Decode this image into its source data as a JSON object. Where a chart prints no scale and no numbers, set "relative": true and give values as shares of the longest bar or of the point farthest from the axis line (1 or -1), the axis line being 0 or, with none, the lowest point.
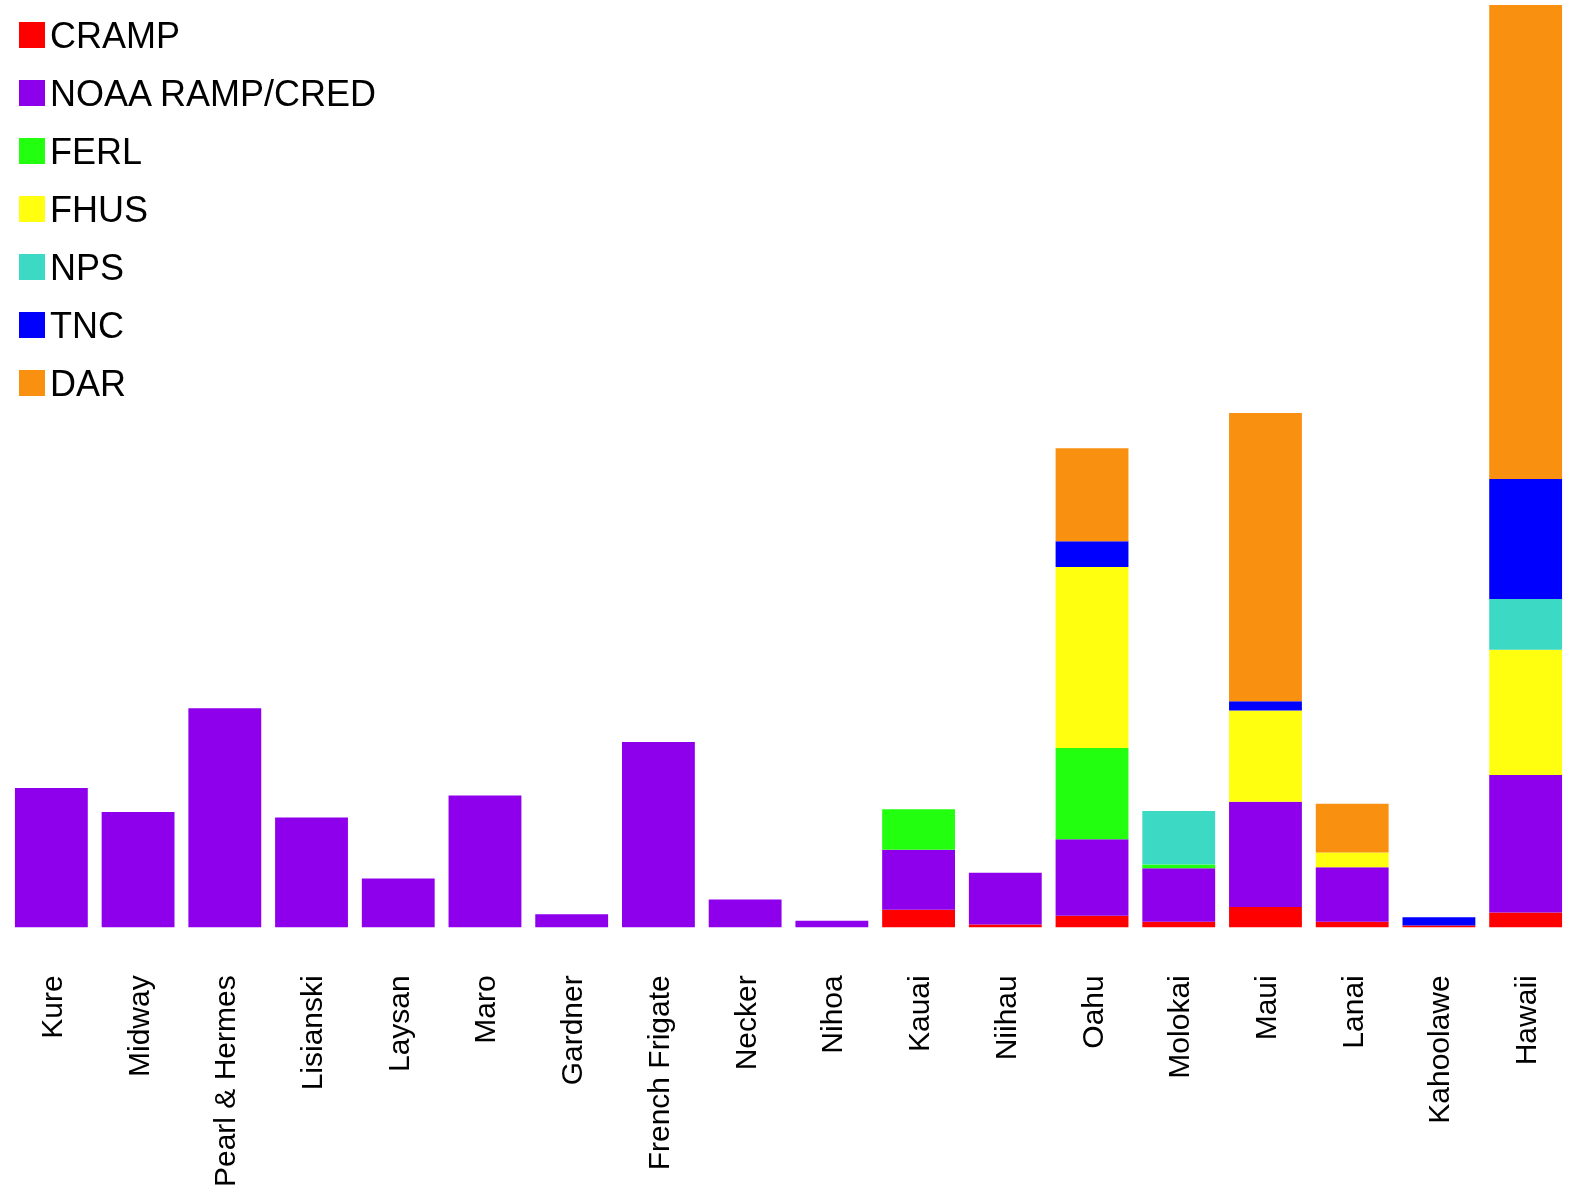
{
  "chart_data": {
    "type": "bar",
    "stacked": true,
    "relative": true,
    "legend": "top left",
    "categories": [
      "Kure",
      "Midway",
      "Pearl & Hermes",
      "Lisianski",
      "Laysan",
      "Maro",
      "Gardner",
      "French Frigate",
      "Necker",
      "Nihoa",
      "Kauai",
      "Niihau",
      "Oahu",
      "Molokai",
      "Maui",
      "Lanai",
      "Kahoolawe",
      "Hawaii"
    ],
    "series": [
      {
        "name": "CRAMP",
        "color": "#ff0000",
        "values": [
          0,
          0,
          0,
          0,
          0,
          0,
          0,
          0,
          0,
          0,
          0.019,
          0.003,
          0.0125,
          0.006,
          0.022,
          0.006,
          0.002,
          0.016
        ]
      },
      {
        "name": "NOAA RAMP/CRED",
        "color": "#8e00ec",
        "values": [
          0.151,
          0.125,
          0.2375,
          0.119,
          0.053,
          0.143,
          0.014,
          0.201,
          0.03,
          0.007,
          0.065,
          0.056,
          0.083,
          0.058,
          0.114,
          0.059,
          0,
          0.149
        ]
      },
      {
        "name": "FERL",
        "color": "#22ff0f",
        "values": [
          0,
          0,
          0,
          0,
          0,
          0,
          0,
          0,
          0,
          0,
          0.044,
          0,
          0.099,
          0.004,
          0,
          0,
          0,
          0
        ]
      },
      {
        "name": "FHUS",
        "color": "#ffff0f",
        "values": [
          0,
          0,
          0,
          0,
          0,
          0,
          0,
          0,
          0,
          0,
          0,
          0,
          0.196,
          0,
          0.099,
          0.016,
          0,
          0.136
        ]
      },
      {
        "name": "NPS",
        "color": "#3cd9c4",
        "values": [
          0,
          0,
          0,
          0,
          0,
          0,
          0,
          0,
          0,
          0,
          0,
          0,
          0,
          0.058,
          0,
          0,
          0,
          0.055
        ]
      },
      {
        "name": "TNC",
        "color": "#0000ff",
        "values": [
          0,
          0,
          0,
          0,
          0,
          0,
          0,
          0,
          0,
          0,
          0,
          0,
          0.028,
          0,
          0.01,
          0,
          0.009,
          0.13
        ]
      },
      {
        "name": "DAR",
        "color": "#fa9010",
        "values": [
          0,
          0,
          0,
          0,
          0,
          0,
          0,
          0,
          0,
          0,
          0,
          0,
          0.101,
          0,
          0.3125,
          0.053,
          0,
          0.514
        ]
      }
    ]
  }
}
